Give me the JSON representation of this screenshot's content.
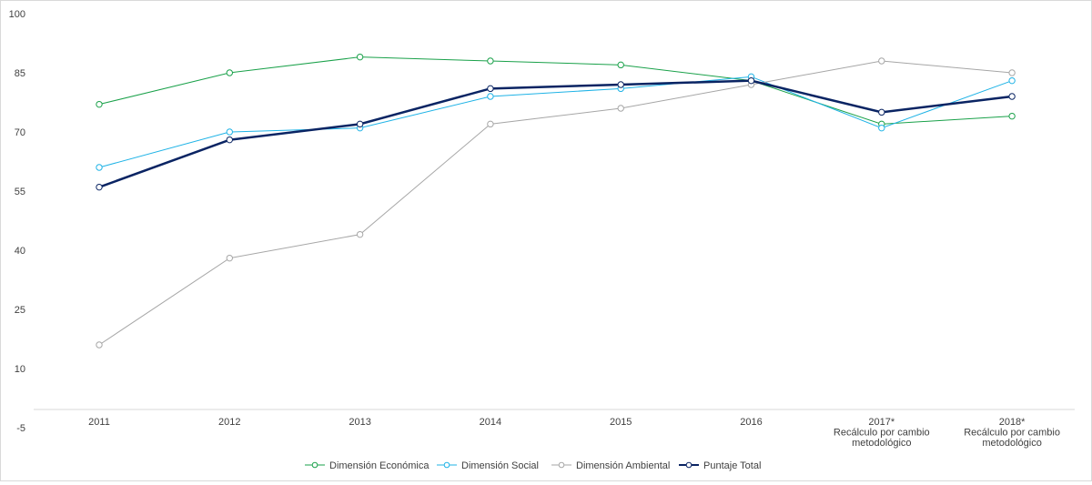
{
  "chart_data": {
    "type": "line",
    "title": "",
    "xlabel": "",
    "ylabel": "",
    "ylim": [
      -5,
      100
    ],
    "yticks": [
      -5,
      10,
      25,
      40,
      55,
      70,
      85,
      100
    ],
    "grid": false,
    "legend_position": "bottom",
    "categories": [
      [
        "2011"
      ],
      [
        "2012"
      ],
      [
        "2013"
      ],
      [
        "2014"
      ],
      [
        "2015"
      ],
      [
        "2016"
      ],
      [
        "2017*",
        "Recálculo por cambio",
        "metodológico"
      ],
      [
        "2018*",
        "Recálculo por cambio",
        "metodológico"
      ]
    ],
    "series": [
      {
        "name": "Dimensión Económica",
        "color": "#1aa14a",
        "bold": false,
        "values": [
          77,
          85,
          89,
          88,
          87,
          83,
          72,
          74
        ]
      },
      {
        "name": "Dimensión Social",
        "color": "#1fb3e6",
        "bold": false,
        "values": [
          61,
          70,
          71,
          79,
          81,
          84,
          71,
          83
        ]
      },
      {
        "name": "Dimensión Ambiental",
        "color": "#a6a6a6",
        "bold": false,
        "values": [
          16,
          38,
          44,
          72,
          76,
          82,
          88,
          85
        ]
      },
      {
        "name": "Puntaje Total",
        "color": "#0a2463",
        "bold": true,
        "values": [
          56,
          68,
          72,
          81,
          82,
          83,
          75,
          79
        ]
      }
    ]
  }
}
